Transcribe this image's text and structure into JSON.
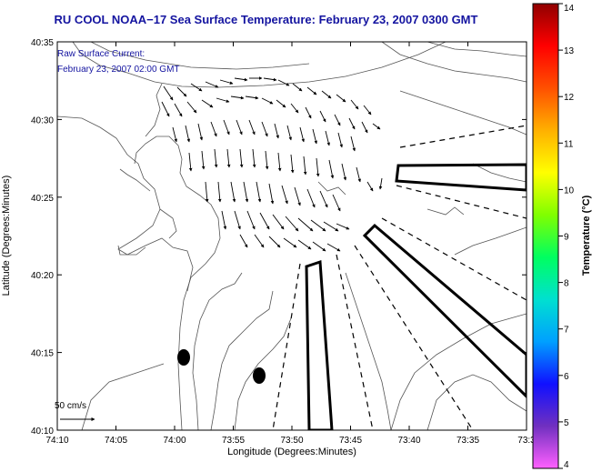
{
  "title": "RU COOL  NOAA−17  Sea Surface Temperature:  February 23, 2007 0300 GMT",
  "current_note": {
    "line1": "Raw Surface Current:",
    "line2": "February 23, 2007 02:00 GMT"
  },
  "scale_label": "50 cm/s",
  "axes": {
    "xlabel": "Longitude (Degrees:Minutes)",
    "ylabel": "Latitude (Degrees:Minutes)",
    "xticks": [
      "74:10",
      "74:05",
      "74:00",
      "73:55",
      "73:50",
      "73:45",
      "73:40",
      "73:35",
      "73:3"
    ],
    "yticks": [
      "40:35",
      "40:30",
      "40:25",
      "40:20",
      "40:15",
      "40:10"
    ]
  },
  "colorbar": {
    "label": "Temperature (°C)",
    "ticks": [
      "14",
      "13",
      "12",
      "11",
      "10",
      "9",
      "8",
      "7",
      "6",
      "5",
      "4"
    ],
    "range": [
      4,
      14
    ],
    "colors": [
      "#ff60ff",
      "#7030c0",
      "#1010ff",
      "#00a0ff",
      "#00e0d0",
      "#00ff60",
      "#80ff00",
      "#ffff00",
      "#ffb000",
      "#ff5000",
      "#ff0000",
      "#900000"
    ]
  }
}
